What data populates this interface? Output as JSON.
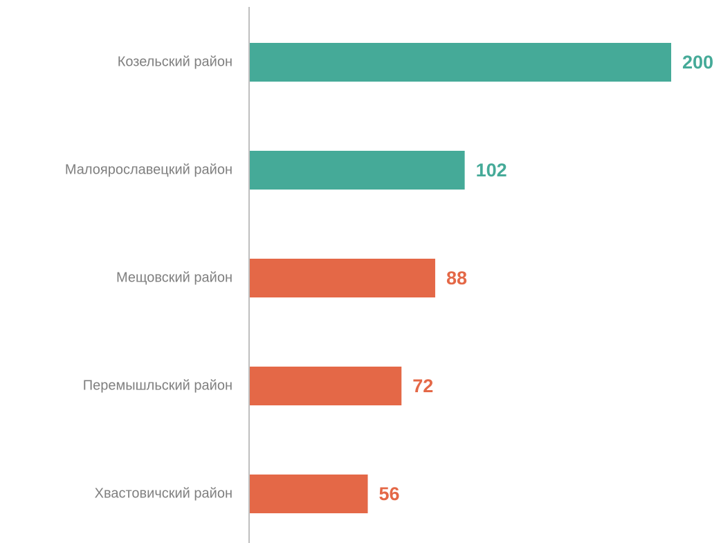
{
  "chart_data": {
    "type": "bar",
    "orientation": "horizontal",
    "categories": [
      "Козельский район",
      "Малоярославецкий район",
      "Мещовский район",
      "Перемышльский район",
      "Хвастовичский район"
    ],
    "values": [
      200,
      102,
      88,
      72,
      56
    ],
    "colors": [
      "#45aa98",
      "#45aa98",
      "#e46847",
      "#e46847",
      "#e46847"
    ]
  }
}
